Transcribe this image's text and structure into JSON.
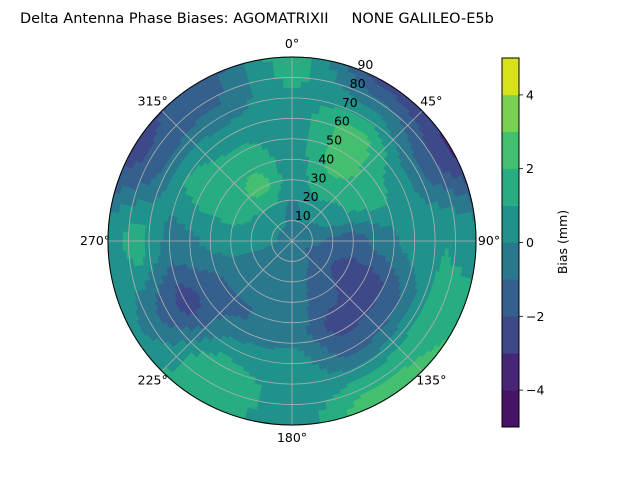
{
  "chart_data": {
    "type": "heatmap",
    "subtype": "polar-filled-contour",
    "title": "Delta Antenna Phase Biases: AGOMATRIXII     NONE GALILEO-E5b",
    "angular_axis": {
      "direction": "clockwise",
      "zero_location": "top",
      "tick_labels": [
        "0°",
        "45°",
        "90°",
        "135°",
        "180°",
        "225°",
        "270°",
        "315°"
      ]
    },
    "radial_axis": {
      "range": [
        0,
        90
      ],
      "tick_labels": [
        "10",
        "20",
        "30",
        "40",
        "50",
        "60",
        "70",
        "80",
        "90"
      ]
    },
    "grid": true,
    "colorbar": {
      "label": "Bias (mm)",
      "levels": [
        -5,
        -4,
        -3,
        -2,
        -1,
        0,
        1,
        2,
        3,
        4,
        5
      ],
      "tick_labels": [
        "−4",
        "−2",
        "0",
        "2",
        "4"
      ],
      "tick_values": [
        -4,
        -2,
        0,
        2,
        4
      ],
      "colors": [
        "#471365",
        "#482677",
        "#3e4989",
        "#355f8d",
        "#2a788e",
        "#21918c",
        "#27ad81",
        "#44bf70",
        "#7ad151",
        "#d8e219"
      ],
      "colormap": "viridis"
    },
    "azimuth_deg": [
      0,
      30,
      60,
      90,
      120,
      150,
      180,
      210,
      240,
      270,
      300,
      330
    ],
    "zenith_deg": [
      0,
      15,
      30,
      45,
      60,
      75,
      90
    ],
    "bias_mm": [
      [
        -0.5,
        -0.3,
        0.5,
        0.5,
        0.5,
        1.0,
        1.5
      ],
      [
        -0.5,
        0.2,
        1.5,
        2.5,
        2.5,
        0.0,
        -2.5
      ],
      [
        -0.5,
        0.0,
        1.0,
        1.5,
        0.5,
        -1.5,
        -3.2
      ],
      [
        -0.5,
        -1.0,
        -1.5,
        -0.5,
        0.5,
        1.0,
        0.5
      ],
      [
        -0.5,
        -1.5,
        -2.5,
        -2.5,
        -1.0,
        1.5,
        2.0
      ],
      [
        -0.5,
        -1.0,
        -1.5,
        -2.5,
        -1.5,
        1.0,
        3.0
      ],
      [
        -0.5,
        -0.5,
        -0.5,
        -0.5,
        0.5,
        0.5,
        0.5
      ],
      [
        -0.5,
        -0.5,
        -1.0,
        -1.0,
        0.5,
        2.0,
        1.5
      ],
      [
        -0.5,
        -0.5,
        -0.5,
        -1.5,
        -2.5,
        -1.0,
        0.5
      ],
      [
        -0.5,
        0.5,
        0.5,
        0.0,
        -0.5,
        1.5,
        0.5
      ],
      [
        -0.5,
        0.5,
        1.5,
        1.5,
        1.0,
        -1.5,
        -2.5
      ],
      [
        -0.5,
        0.5,
        2.5,
        1.5,
        0.5,
        -1.0,
        -1.5
      ]
    ]
  }
}
